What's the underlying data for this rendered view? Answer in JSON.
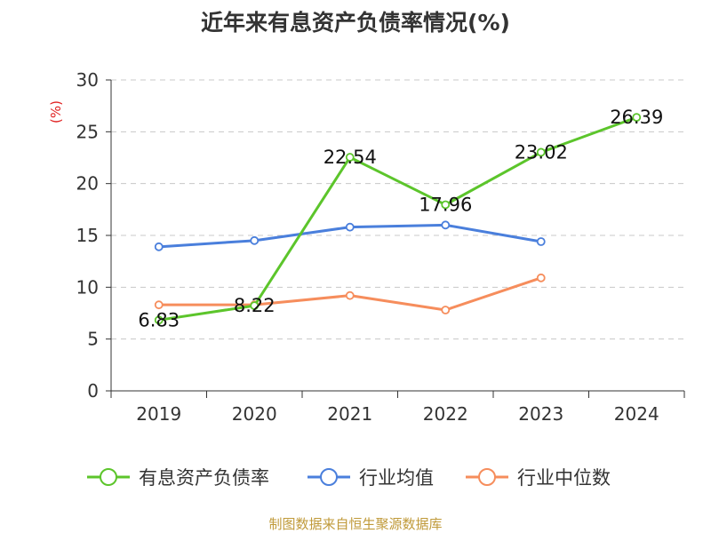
{
  "title": "近年来有息资产负债率情况(%)",
  "source": "制图数据来自恒生聚源数据库",
  "chart_data": {
    "type": "line",
    "title": "近年来有息资产负债率情况(%)",
    "ylabel": "(%)",
    "xlabel": "",
    "categories": [
      "2019",
      "2020",
      "2021",
      "2022",
      "2023",
      "2024"
    ],
    "ylim": [
      0,
      30
    ],
    "yticks": [
      0,
      5,
      10,
      15,
      20,
      25,
      30
    ],
    "grid": true,
    "legend_position": "bottom",
    "series": [
      {
        "name": "有息资产负债率",
        "color": "#5cc52b",
        "values": [
          6.83,
          8.22,
          22.54,
          17.96,
          23.02,
          26.39
        ],
        "labeled": true
      },
      {
        "name": "行业均值",
        "color": "#4a7fdc",
        "values": [
          13.9,
          14.5,
          15.8,
          16.0,
          14.4,
          null
        ],
        "labeled": false
      },
      {
        "name": "行业中位数",
        "color": "#f68d5c",
        "values": [
          8.3,
          8.3,
          9.2,
          7.8,
          10.9,
          null
        ],
        "labeled": false
      }
    ]
  }
}
